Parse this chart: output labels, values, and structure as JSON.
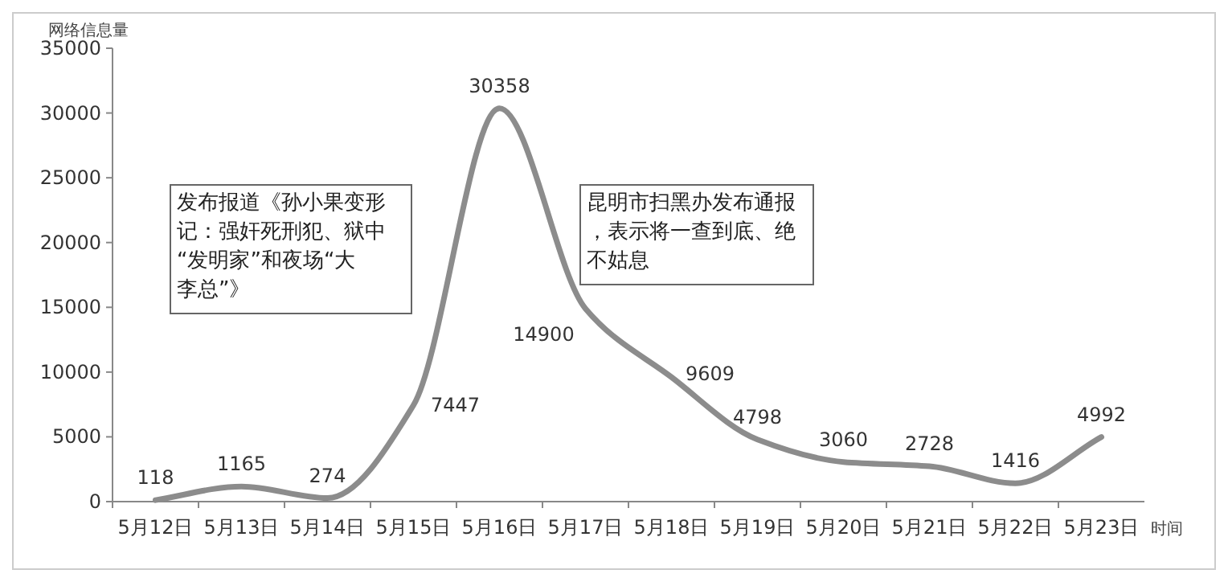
{
  "chart_data": {
    "type": "line",
    "ylabel": "网络信息量",
    "xlabel": "时间",
    "categories": [
      "5月12日",
      "5月13日",
      "5月14日",
      "5月15日",
      "5月16日",
      "5月17日",
      "5月18日",
      "5月19日",
      "5月20日",
      "5月21日",
      "5月22日",
      "5月23日"
    ],
    "series": [
      {
        "color": "#8c8c8c",
        "values": [
          118,
          1165,
          274,
          7447,
          30358,
          14900,
          9609,
          4798,
          3060,
          2728,
          1416,
          4992
        ]
      }
    ],
    "ylim": [
      0,
      35000
    ],
    "yticks": [
      0,
      5000,
      10000,
      15000,
      20000,
      25000,
      30000,
      35000
    ],
    "data_labels": true,
    "grid": false,
    "marker": "none",
    "line_style": "solid",
    "annotations": [
      "发布报道《孙小果变形记：强奸死刑犯、狱中“发明家”和夜场“大李总”》",
      "昆明市扫黑办发布通报，表示将一查到底、绝不姑息"
    ]
  }
}
